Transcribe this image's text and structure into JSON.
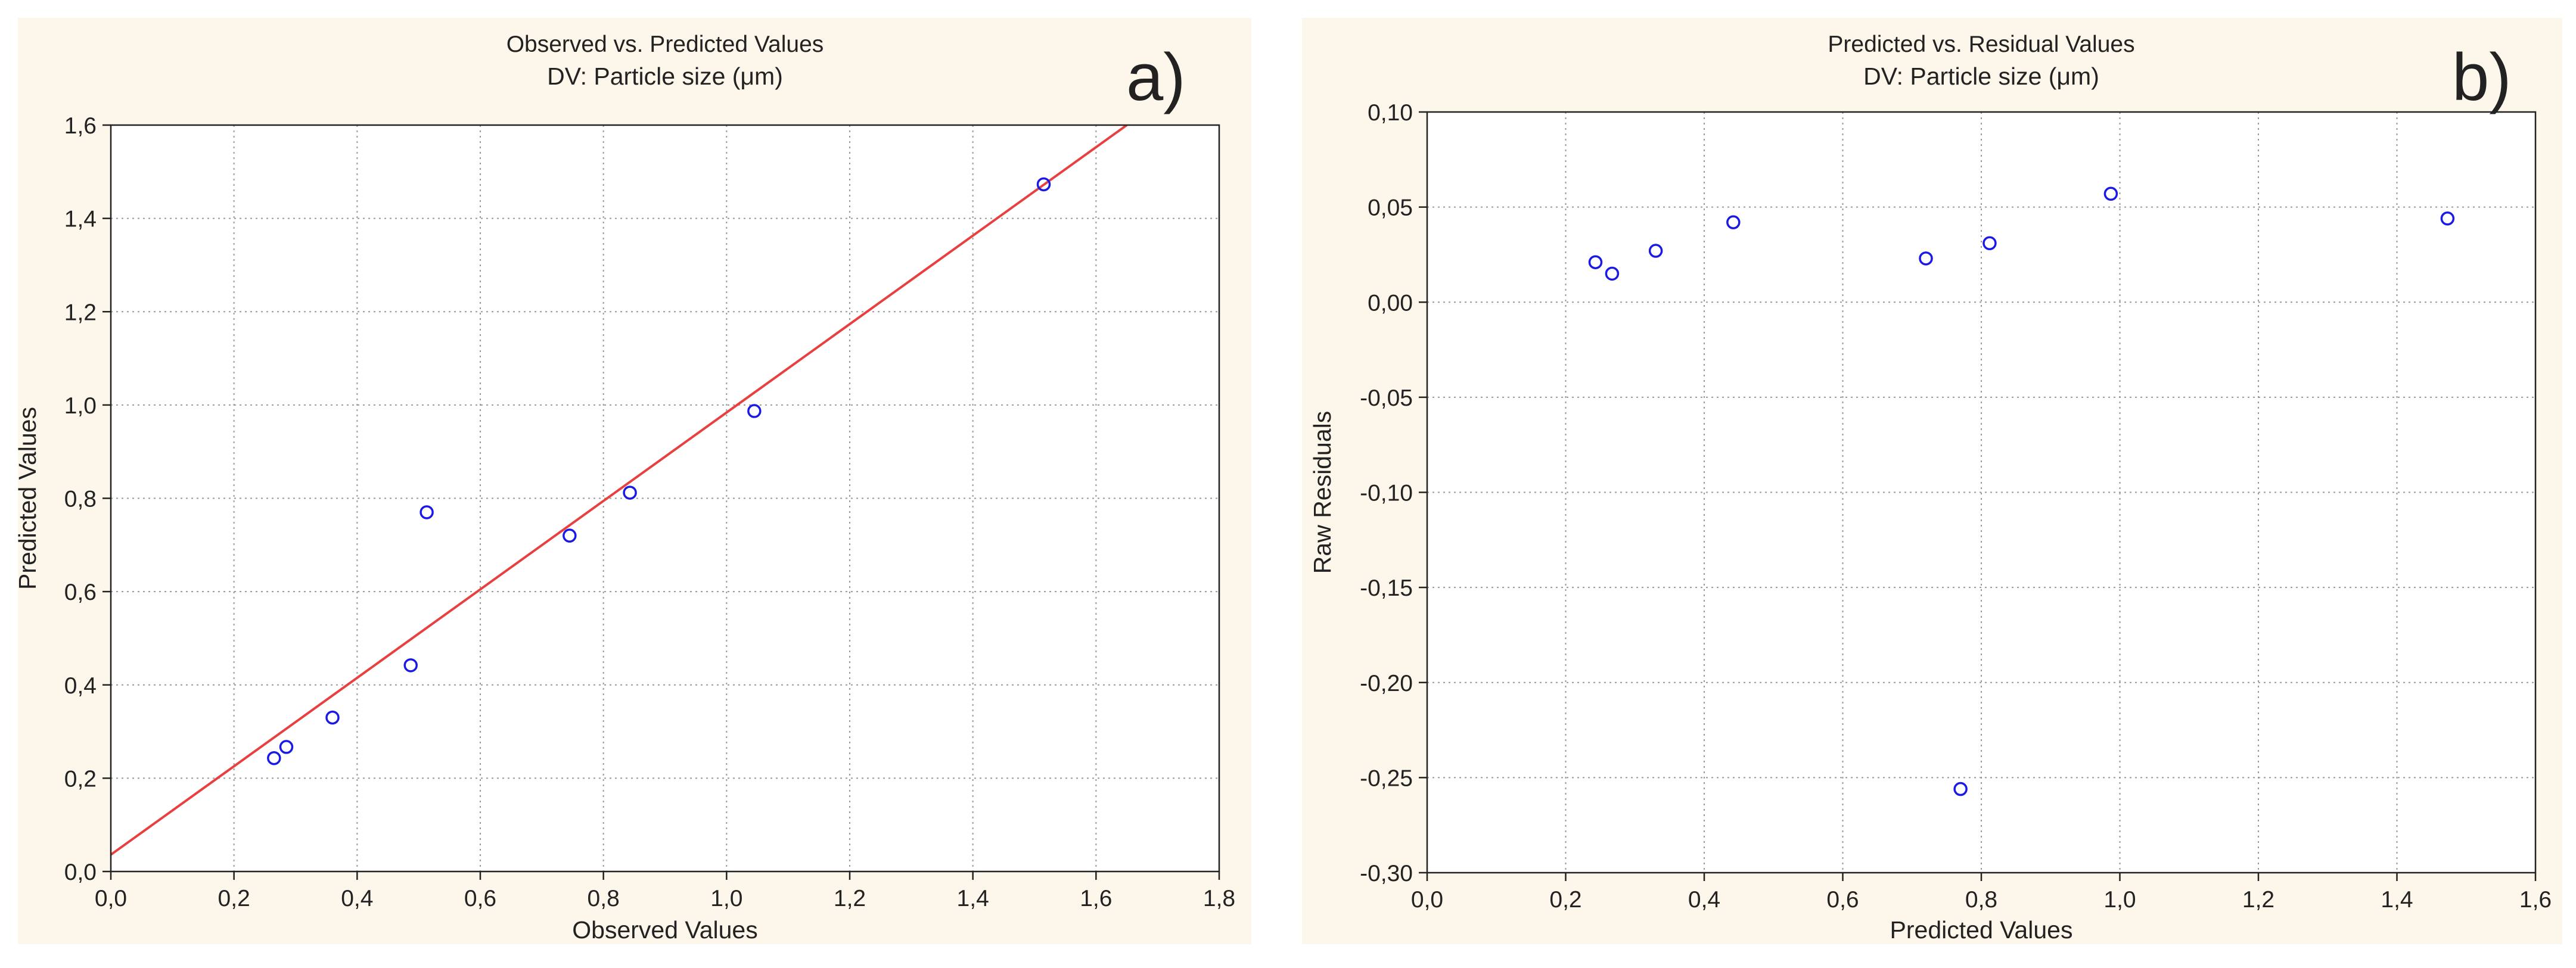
{
  "colors": {
    "panel_bg": "#fdf6ea",
    "plot_bg": "#ffffff",
    "point": "#1a1ae6",
    "fit_line": "#e84040",
    "grid": "#9a9a9a",
    "axis": "#222222"
  },
  "chart_data": [
    {
      "type": "scatter",
      "panel_label": "a)",
      "title": "Observed vs. Predicted Values",
      "subtitle": "DV: Particle size (μm)",
      "xlabel": "Observed Values",
      "ylabel": "Predicted Values",
      "xlim": [
        0,
        1.8
      ],
      "ylim": [
        0,
        1.6
      ],
      "xticks": [
        "0,0",
        "0,2",
        "0,4",
        "0,6",
        "0,8",
        "1,0",
        "1,2",
        "1,4",
        "1,6",
        "1,8"
      ],
      "yticks": [
        "0,0",
        "0,2",
        "0,4",
        "0,6",
        "0,8",
        "1,0",
        "1,2",
        "1,4",
        "1,6"
      ],
      "grid": true,
      "points": {
        "x": [
          0.265,
          0.285,
          0.36,
          0.487,
          0.513,
          0.745,
          0.843,
          1.045,
          1.515
        ],
        "y": [
          0.243,
          0.267,
          0.33,
          0.442,
          0.77,
          0.72,
          0.812,
          0.987,
          1.473
        ]
      },
      "fit_line": {
        "x": [
          0,
          1.65
        ],
        "y": [
          0.036,
          1.6
        ]
      }
    },
    {
      "type": "scatter",
      "panel_label": "b)",
      "title": "Predicted vs. Residual Values",
      "subtitle": "DV: Particle size (μm)",
      "xlabel": "Predicted Values",
      "ylabel": "Raw Residuals",
      "xlim": [
        0,
        1.6
      ],
      "ylim": [
        -0.3,
        0.1
      ],
      "xticks": [
        "0,0",
        "0,2",
        "0,4",
        "0,6",
        "0,8",
        "1,0",
        "1,2",
        "1,4",
        "1,6"
      ],
      "yticks": [
        "-0,30",
        "-0,25",
        "-0,20",
        "-0,15",
        "-0,10",
        "-0,05",
        "0,00",
        "0,05",
        "0,10"
      ],
      "grid": true,
      "points": {
        "x": [
          0.243,
          0.267,
          0.33,
          0.442,
          0.72,
          0.77,
          0.812,
          0.987,
          1.473
        ],
        "y": [
          0.021,
          0.015,
          0.027,
          0.042,
          0.023,
          -0.256,
          0.031,
          0.057,
          0.044
        ]
      }
    }
  ]
}
